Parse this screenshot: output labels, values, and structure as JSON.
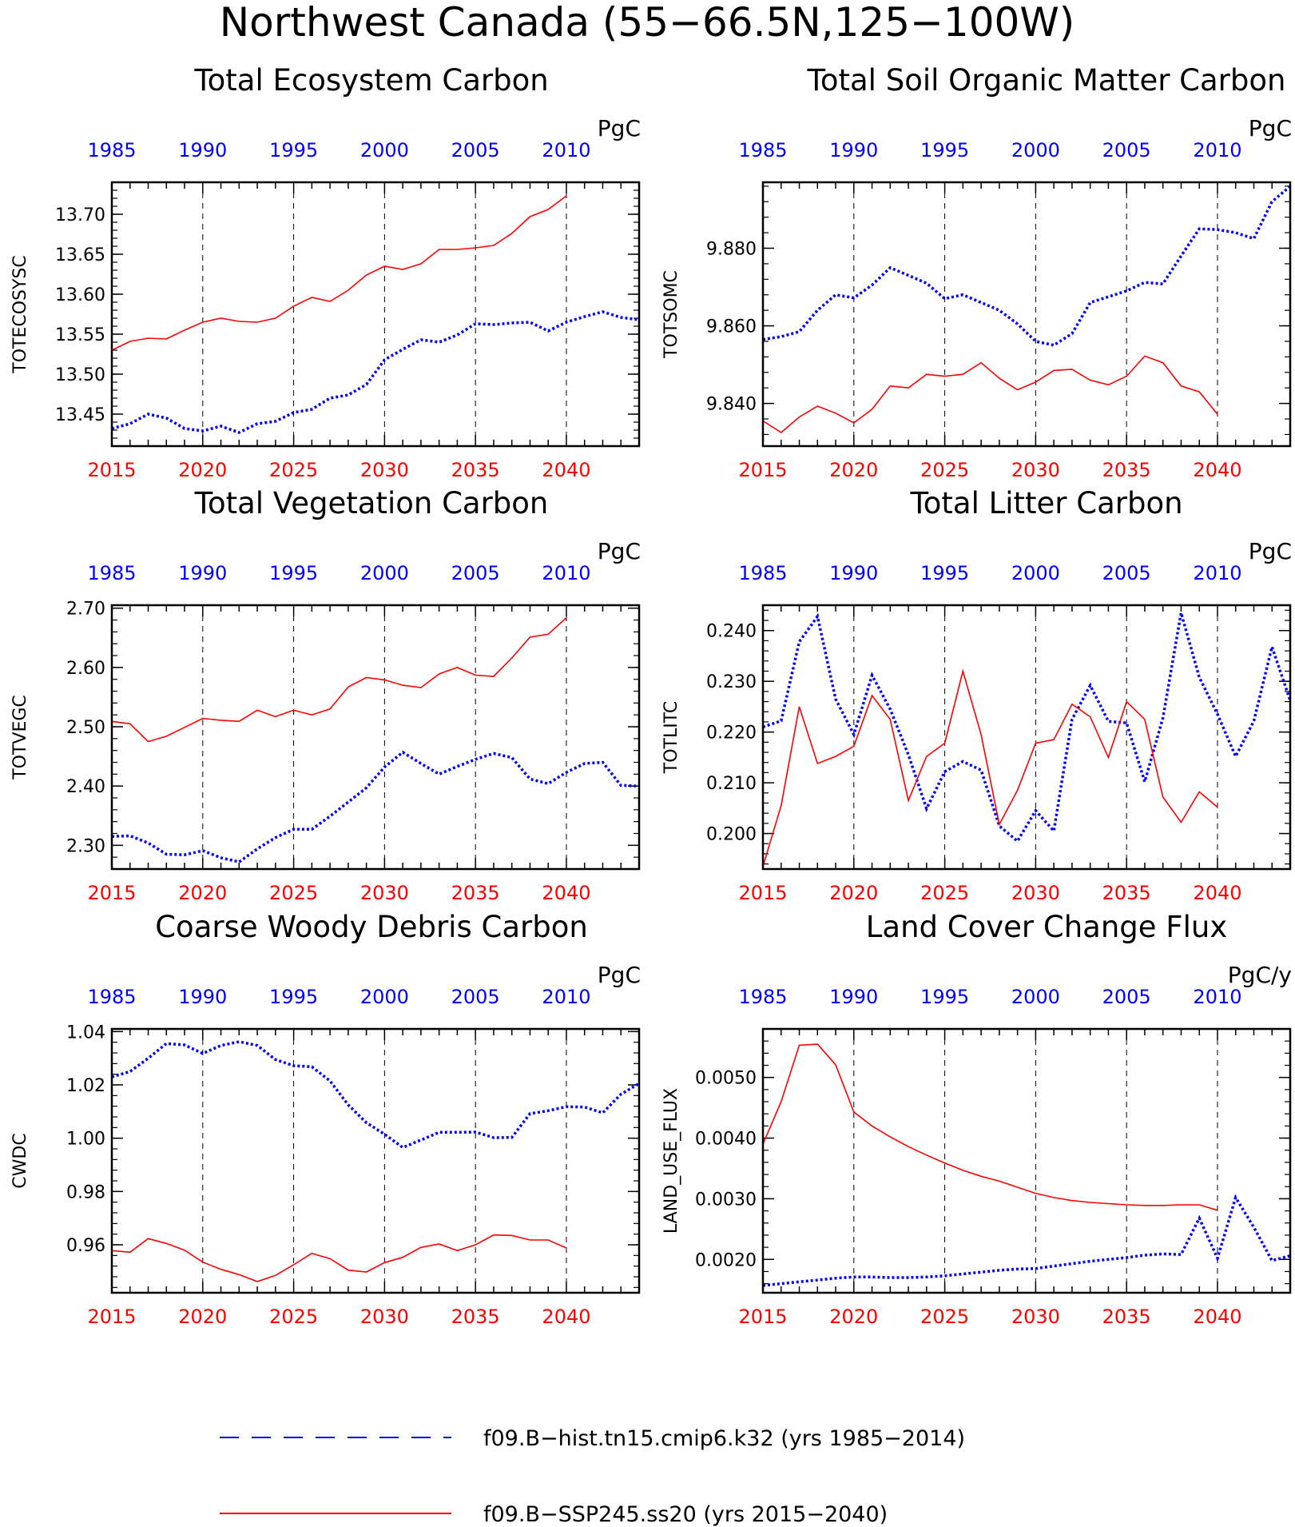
{
  "figure": {
    "title": "Northwest Canada (55−66.5N,125−100W)",
    "legend": [
      {
        "label": "f09.B−hist.tn15.cmip6.k32 (yrs 1985−2014)",
        "color": "#0000ff",
        "style": "dashed"
      },
      {
        "label": "f09.B−SSP245.ss20 (yrs 2015−2040)",
        "color": "#ff0000",
        "style": "solid"
      }
    ],
    "colors": {
      "hist": "#0000ff",
      "ssp": "#ff0000",
      "axis": "#000000"
    }
  },
  "chart_data": [
    {
      "type": "line",
      "title": "Total Ecosystem Carbon",
      "ylabel": "TOTECOSYSC",
      "units": "PgC",
      "ylim": [
        13.41,
        13.74
      ],
      "yticks": [
        13.45,
        13.5,
        13.55,
        13.6,
        13.65,
        13.7
      ],
      "ytick_labels": [
        "13.45",
        "13.50",
        "13.55",
        "13.60",
        "13.65",
        "13.70"
      ],
      "grid": "vertical dashed",
      "top_axis": {
        "color": "#0000ff",
        "ticks": [
          "1985",
          "1990",
          "1995",
          "2000",
          "2005",
          "2010"
        ]
      },
      "bottom_axis": {
        "color": "#ff0000",
        "ticks": [
          "2015",
          "2020",
          "2025",
          "2030",
          "2035",
          "2040"
        ]
      },
      "series": [
        {
          "key": "hist",
          "name": "f09.B−hist.tn15.cmip6.k32",
          "x_start": 1985,
          "values": [
            13.432,
            13.438,
            13.45,
            13.445,
            13.432,
            13.429,
            13.435,
            13.427,
            13.438,
            13.441,
            13.452,
            13.456,
            13.47,
            13.474,
            13.487,
            13.518,
            13.531,
            13.543,
            13.54,
            13.549,
            13.563,
            13.562,
            13.564,
            13.565,
            13.554,
            13.565,
            13.572,
            13.578,
            13.571,
            13.568
          ]
        },
        {
          "key": "ssp",
          "name": "f09.B−SSP245.ss20",
          "x_start": 2015,
          "values": [
            13.53,
            13.541,
            13.545,
            13.544,
            13.555,
            13.565,
            13.57,
            13.566,
            13.565,
            13.57,
            13.585,
            13.596,
            13.591,
            13.605,
            13.624,
            13.635,
            13.631,
            13.638,
            13.656,
            13.656,
            13.658,
            13.661,
            13.676,
            13.697,
            13.706,
            13.723
          ]
        }
      ]
    },
    {
      "type": "line",
      "title": "Total Soil Organic Matter Carbon",
      "ylabel": "TOTSOMC",
      "units": "PgC",
      "ylim": [
        9.829,
        9.897
      ],
      "yticks": [
        9.84,
        9.86,
        9.88
      ],
      "ytick_labels": [
        "9.840",
        "9.860",
        "9.880"
      ],
      "grid": "vertical dashed",
      "top_axis": {
        "color": "#0000ff",
        "ticks": [
          "1985",
          "1990",
          "1995",
          "2000",
          "2005",
          "2010"
        ]
      },
      "bottom_axis": {
        "color": "#ff0000",
        "ticks": [
          "2015",
          "2020",
          "2025",
          "2030",
          "2035",
          "2040"
        ]
      },
      "series": [
        {
          "key": "hist",
          "name": "f09.B−hist.tn15.cmip6.k32",
          "x_start": 1985,
          "values": [
            9.8565,
            9.8572,
            9.8585,
            9.864,
            9.868,
            9.8672,
            9.8705,
            9.875,
            9.873,
            9.871,
            9.867,
            9.868,
            9.866,
            9.864,
            9.8605,
            9.856,
            9.855,
            9.858,
            9.866,
            9.8675,
            9.869,
            9.8712,
            9.8708,
            9.878,
            9.885,
            9.8848,
            9.884,
            9.8825,
            9.892,
            9.896
          ]
        },
        {
          "key": "ssp",
          "name": "f09.B−SSP245.ss20",
          "x_start": 2015,
          "values": [
            9.8355,
            9.8325,
            9.8365,
            9.8393,
            9.8375,
            9.835,
            9.8385,
            9.8445,
            9.844,
            9.8475,
            9.847,
            9.8475,
            9.8505,
            9.8465,
            9.8435,
            9.8455,
            9.8485,
            9.8488,
            9.846,
            9.8448,
            9.847,
            9.8522,
            9.8505,
            9.8445,
            9.843,
            9.8372
          ]
        }
      ]
    },
    {
      "type": "line",
      "title": "Total Vegetation Carbon",
      "ylabel": "TOTVEGC",
      "units": "PgC",
      "ylim": [
        2.26,
        2.705
      ],
      "yticks": [
        2.3,
        2.4,
        2.5,
        2.6,
        2.7
      ],
      "ytick_labels": [
        "2.30",
        "2.40",
        "2.50",
        "2.60",
        "2.70"
      ],
      "grid": "vertical dashed",
      "top_axis": {
        "color": "#0000ff",
        "ticks": [
          "1985",
          "1990",
          "1995",
          "2000",
          "2005",
          "2010"
        ]
      },
      "bottom_axis": {
        "color": "#ff0000",
        "ticks": [
          "2015",
          "2020",
          "2025",
          "2030",
          "2035",
          "2040"
        ]
      },
      "series": [
        {
          "key": "hist",
          "name": "f09.B−hist.tn15.cmip6.k32",
          "x_start": 1985,
          "values": [
            2.315,
            2.316,
            2.304,
            2.285,
            2.284,
            2.291,
            2.279,
            2.272,
            2.294,
            2.313,
            2.327,
            2.327,
            2.349,
            2.373,
            2.397,
            2.432,
            2.457,
            2.438,
            2.42,
            2.433,
            2.445,
            2.455,
            2.448,
            2.412,
            2.404,
            2.423,
            2.438,
            2.44,
            2.401,
            2.4
          ]
        },
        {
          "key": "ssp",
          "name": "f09.B−SSP245.ss20",
          "x_start": 2015,
          "values": [
            2.509,
            2.505,
            2.475,
            2.484,
            2.499,
            2.514,
            2.511,
            2.509,
            2.528,
            2.517,
            2.528,
            2.52,
            2.53,
            2.567,
            2.583,
            2.579,
            2.57,
            2.566,
            2.589,
            2.6,
            2.587,
            2.585,
            2.616,
            2.651,
            2.656,
            2.684
          ]
        }
      ]
    },
    {
      "type": "line",
      "title": "Total Litter Carbon",
      "ylabel": "TOTLITC",
      "units": "PgC",
      "ylim": [
        0.193,
        0.245
      ],
      "yticks": [
        0.2,
        0.21,
        0.22,
        0.23,
        0.24
      ],
      "ytick_labels": [
        "0.200",
        "0.210",
        "0.220",
        "0.230",
        "0.240"
      ],
      "grid": "vertical dashed",
      "top_axis": {
        "color": "#0000ff",
        "ticks": [
          "1985",
          "1990",
          "1995",
          "2000",
          "2005",
          "2010"
        ]
      },
      "bottom_axis": {
        "color": "#ff0000",
        "ticks": [
          "2015",
          "2020",
          "2025",
          "2030",
          "2035",
          "2040"
        ]
      },
      "series": [
        {
          "key": "hist",
          "name": "f09.B−hist.tn15.cmip6.k32",
          "x_start": 1985,
          "values": [
            0.221,
            0.2222,
            0.2378,
            0.2428,
            0.2265,
            0.2195,
            0.2312,
            0.2245,
            0.2155,
            0.2049,
            0.2122,
            0.2142,
            0.2125,
            0.2015,
            0.1985,
            0.2045,
            0.2005,
            0.2225,
            0.2292,
            0.2221,
            0.2218,
            0.2102,
            0.2228,
            0.2435,
            0.2308,
            0.2235,
            0.2152,
            0.2222,
            0.2368,
            0.2262
          ]
        },
        {
          "key": "ssp",
          "name": "f09.B−SSP245.ss20",
          "x_start": 2015,
          "values": [
            0.1935,
            0.2055,
            0.225,
            0.2138,
            0.2152,
            0.2172,
            0.2272,
            0.2225,
            0.2065,
            0.2152,
            0.2178,
            0.232,
            0.2195,
            0.2018,
            0.2085,
            0.2178,
            0.2185,
            0.2255,
            0.223,
            0.215,
            0.226,
            0.2225,
            0.2072,
            0.2022,
            0.2082,
            0.2052
          ]
        }
      ]
    },
    {
      "type": "line",
      "title": "Coarse Woody Debris Carbon",
      "ylabel": "CWDC",
      "units": "PgC",
      "ylim": [
        0.942,
        1.041
      ],
      "yticks": [
        0.96,
        0.98,
        1.0,
        1.02,
        1.04
      ],
      "ytick_labels": [
        "0.96",
        "0.98",
        "1.00",
        "1.02",
        "1.04"
      ],
      "grid": "vertical dashed",
      "top_axis": {
        "color": "#0000ff",
        "ticks": [
          "1985",
          "1990",
          "1995",
          "2000",
          "2005",
          "2010"
        ]
      },
      "bottom_axis": {
        "color": "#ff0000",
        "ticks": [
          "2015",
          "2020",
          "2025",
          "2030",
          "2035",
          "2040"
        ]
      },
      "series": [
        {
          "key": "hist",
          "name": "f09.B−hist.tn15.cmip6.k32",
          "x_start": 1985,
          "values": [
            1.023,
            1.025,
            1.03,
            1.0355,
            1.035,
            1.0318,
            1.0348,
            1.0362,
            1.0348,
            1.0295,
            1.0272,
            1.0268,
            1.0215,
            1.0125,
            1.0058,
            1.0015,
            0.9965,
            0.9993,
            1.0022,
            1.0022,
            1.0023,
            1.0002,
            1.0003,
            1.0092,
            1.0103,
            1.0118,
            1.0117,
            1.0095,
            1.0165,
            1.0205
          ]
        },
        {
          "key": "ssp",
          "name": "f09.B−SSP245.ss20",
          "x_start": 2015,
          "values": [
            0.9578,
            0.9572,
            0.9623,
            0.9605,
            0.958,
            0.9535,
            0.9508,
            0.9488,
            0.9462,
            0.9485,
            0.9525,
            0.9568,
            0.9548,
            0.9505,
            0.9498,
            0.9533,
            0.9553,
            0.959,
            0.9603,
            0.9578,
            0.96,
            0.9637,
            0.9635,
            0.9618,
            0.9618,
            0.9588
          ]
        }
      ]
    },
    {
      "type": "line",
      "title": "Land Cover Change Flux",
      "ylabel": "LAND_USE_FLUX",
      "units": "PgC/y",
      "ylim": [
        0.00145,
        0.0058
      ],
      "yticks": [
        0.002,
        0.003,
        0.004,
        0.005
      ],
      "ytick_labels": [
        "0.0020",
        "0.0030",
        "0.0040",
        "0.0050"
      ],
      "grid": "vertical dashed",
      "top_axis": {
        "color": "#0000ff",
        "ticks": [
          "1985",
          "1990",
          "1995",
          "2000",
          "2005",
          "2010"
        ]
      },
      "bottom_axis": {
        "color": "#ff0000",
        "ticks": [
          "2015",
          "2020",
          "2025",
          "2030",
          "2035",
          "2040"
        ]
      },
      "series": [
        {
          "key": "hist",
          "name": "f09.B−hist.tn15.cmip6.k32",
          "x_start": 1985,
          "values": [
            0.00157,
            0.0016,
            0.00163,
            0.00166,
            0.00169,
            0.00171,
            0.00171,
            0.0017,
            0.0017,
            0.00171,
            0.00173,
            0.00176,
            0.00179,
            0.00182,
            0.00184,
            0.00185,
            0.00189,
            0.00193,
            0.00197,
            0.002,
            0.00203,
            0.00207,
            0.00209,
            0.00208,
            0.00268,
            0.00202,
            0.00302,
            0.00253,
            0.00198,
            0.00206
          ]
        },
        {
          "key": "ssp",
          "name": "f09.B−SSP245.ss20",
          "x_start": 2015,
          "values": [
            0.0039,
            0.0046,
            0.00553,
            0.00555,
            0.00521,
            0.00443,
            0.0042,
            0.00402,
            0.00386,
            0.00372,
            0.00359,
            0.00347,
            0.00337,
            0.00329,
            0.00319,
            0.00309,
            0.00302,
            0.00297,
            0.00294,
            0.00292,
            0.0029,
            0.00289,
            0.00289,
            0.0029,
            0.0029,
            0.00281
          ]
        }
      ]
    }
  ]
}
